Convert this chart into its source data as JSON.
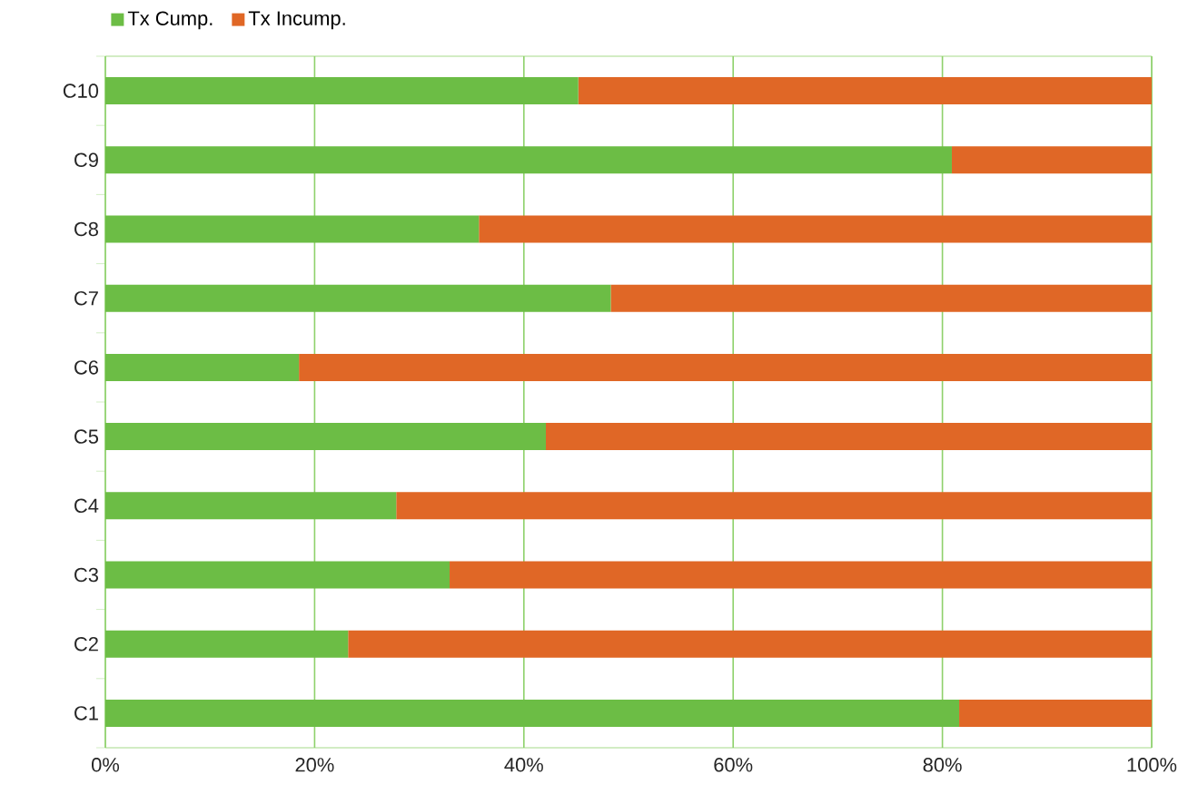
{
  "chart_data": {
    "type": "bar",
    "orientation": "horizontal",
    "stacked": true,
    "categories": [
      "C10",
      "C9",
      "C8",
      "C7",
      "C6",
      "C5",
      "C4",
      "C3",
      "C2",
      "C1"
    ],
    "series": [
      {
        "name": "Tx Cump.",
        "color": "#6cbd45",
        "values": [
          45.2,
          80.9,
          35.7,
          48.3,
          18.5,
          42.1,
          27.8,
          32.9,
          23.2,
          81.6
        ]
      },
      {
        "name": "Tx Incump.",
        "color": "#e06726",
        "values": [
          54.8,
          19.1,
          64.3,
          51.7,
          81.5,
          57.9,
          72.2,
          67.1,
          76.8,
          18.4
        ]
      }
    ],
    "xlim": [
      0,
      100
    ],
    "xticks": [
      {
        "value": 0,
        "label": "0%"
      },
      {
        "value": 20,
        "label": "20%"
      },
      {
        "value": 40,
        "label": "40%"
      },
      {
        "value": 60,
        "label": "60%"
      },
      {
        "value": 80,
        "label": "80%"
      },
      {
        "value": 100,
        "label": "100%"
      }
    ],
    "grid": "x",
    "legend": "top left"
  }
}
